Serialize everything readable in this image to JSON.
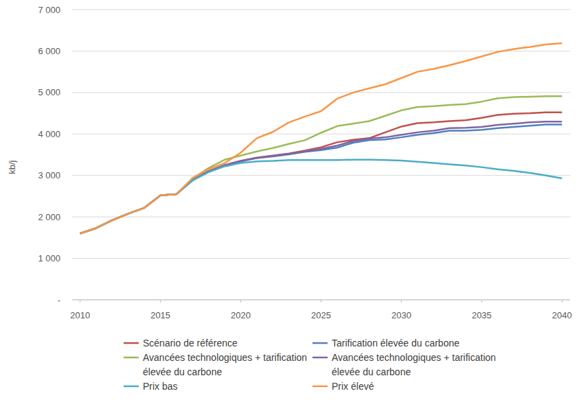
{
  "chart_data": {
    "type": "line",
    "y_label": "kb/j",
    "x": [
      2010,
      2011,
      2012,
      2013,
      2014,
      2015,
      2016,
      2017,
      2018,
      2019,
      2020,
      2021,
      2022,
      2023,
      2024,
      2025,
      2026,
      2027,
      2028,
      2029,
      2030,
      2031,
      2032,
      2033,
      2034,
      2035,
      2036,
      2037,
      2038,
      2039,
      2040
    ],
    "xlim": [
      2009.5,
      2040.5
    ],
    "xticks": [
      2010,
      2015,
      2020,
      2025,
      2030,
      2035,
      2040
    ],
    "ylim": [
      0,
      7000
    ],
    "yticks": [
      {
        "value": 0,
        "label": "-"
      },
      {
        "value": 1000,
        "label": "1 000"
      },
      {
        "value": 2000,
        "label": "2 000"
      },
      {
        "value": 3000,
        "label": "3 000"
      },
      {
        "value": 4000,
        "label": "4 000"
      },
      {
        "value": 5000,
        "label": "5 000"
      },
      {
        "value": 6000,
        "label": "6 000"
      },
      {
        "value": 7000,
        "label": "7 000"
      }
    ],
    "grid": true,
    "legend": "bottom",
    "series": [
      {
        "name": "Scénario de référence",
        "color": "#c0504d",
        "values": [
          1600,
          1730,
          1920,
          2080,
          2220,
          2520,
          2550,
          2900,
          3100,
          3250,
          3350,
          3430,
          3480,
          3530,
          3600,
          3680,
          3800,
          3860,
          3900,
          4040,
          4180,
          4260,
          4280,
          4310,
          4330,
          4390,
          4460,
          4490,
          4500,
          4520,
          4520
        ]
      },
      {
        "name": "Tarification élevée du carbone",
        "color": "#4f81bd",
        "values": [
          1600,
          1730,
          1920,
          2080,
          2220,
          2520,
          2550,
          2880,
          3090,
          3240,
          3340,
          3420,
          3460,
          3510,
          3570,
          3610,
          3670,
          3790,
          3850,
          3870,
          3920,
          3980,
          4020,
          4080,
          4080,
          4100,
          4140,
          4170,
          4200,
          4230,
          4230
        ]
      },
      {
        "name": "Avancées technologiques + tarification élevée du carbone",
        "color": "#9bbb59",
        "values": [
          1600,
          1730,
          1920,
          2080,
          2220,
          2520,
          2550,
          2920,
          3180,
          3380,
          3480,
          3580,
          3660,
          3760,
          3850,
          4030,
          4190,
          4250,
          4310,
          4440,
          4570,
          4650,
          4670,
          4700,
          4720,
          4780,
          4860,
          4890,
          4900,
          4910,
          4910
        ]
      },
      {
        "name": "Avancées technologiques + tarification élevée du carbone",
        "color": "#8064a2",
        "values": [
          1600,
          1730,
          1920,
          2080,
          2220,
          2520,
          2550,
          2890,
          3100,
          3250,
          3350,
          3420,
          3470,
          3520,
          3580,
          3640,
          3720,
          3830,
          3890,
          3920,
          3980,
          4040,
          4080,
          4140,
          4150,
          4170,
          4220,
          4250,
          4280,
          4300,
          4300
        ]
      },
      {
        "name": "Prix bas",
        "color": "#4bacc6",
        "values": [
          1600,
          1730,
          1920,
          2080,
          2220,
          2520,
          2550,
          2880,
          3080,
          3220,
          3300,
          3340,
          3350,
          3370,
          3370,
          3370,
          3370,
          3380,
          3380,
          3370,
          3360,
          3330,
          3300,
          3270,
          3240,
          3200,
          3150,
          3110,
          3060,
          3000,
          2930
        ]
      },
      {
        "name": "Prix élevé",
        "color": "#f79646",
        "values": [
          1600,
          1730,
          1920,
          2080,
          2220,
          2520,
          2550,
          2940,
          3150,
          3300,
          3550,
          3900,
          4050,
          4280,
          4420,
          4550,
          4850,
          5000,
          5100,
          5200,
          5350,
          5500,
          5570,
          5660,
          5760,
          5870,
          5980,
          6050,
          6100,
          6160,
          6190
        ]
      }
    ]
  }
}
